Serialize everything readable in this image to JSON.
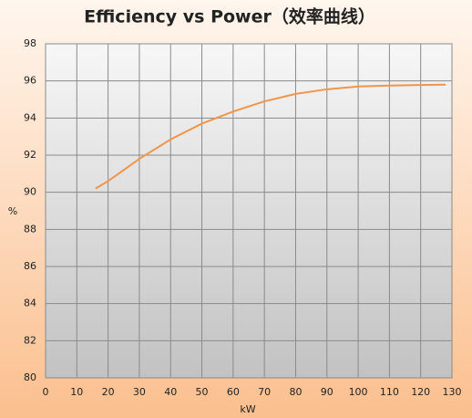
{
  "chart_data": {
    "type": "line",
    "title": "Efficiency vs Power（效率曲线）",
    "x_label": "kW",
    "y_label": "%",
    "x": [
      16,
      20,
      30,
      40,
      50,
      60,
      70,
      80,
      90,
      100,
      110,
      120,
      128
    ],
    "series": [
      {
        "name": "Efficiency",
        "color": "#f0954a",
        "values": [
          90.2,
          90.6,
          91.8,
          92.85,
          93.7,
          94.35,
          94.9,
          95.3,
          95.55,
          95.7,
          95.75,
          95.78,
          95.8
        ]
      }
    ],
    "xlim": [
      0,
      130
    ],
    "xticks": [
      0,
      10,
      20,
      30,
      40,
      50,
      60,
      70,
      80,
      90,
      100,
      110,
      120,
      130
    ],
    "ylim": [
      80,
      98
    ],
    "yticks": [
      80,
      82,
      84,
      86,
      88,
      90,
      92,
      94,
      96,
      98
    ],
    "grid": true
  }
}
